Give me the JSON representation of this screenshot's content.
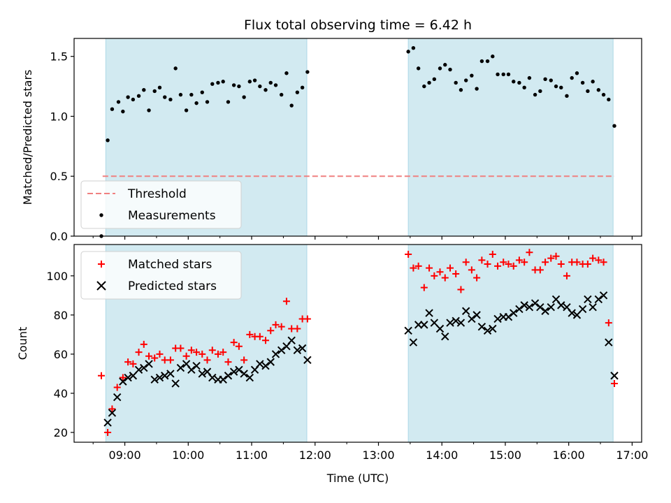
{
  "title": "Flux total observing time = 6.42 h",
  "colors": {
    "observing_band": "#add8e6",
    "threshold": "#f08080",
    "measurements": "#000000",
    "matched": "#ff0000",
    "predicted": "#000000"
  },
  "chart_data": [
    {
      "type": "scatter",
      "panel": "top",
      "title": "Flux total observing time = 6.42 h",
      "ylabel": "Matched/Predicted stars",
      "xlabel": "",
      "x_unit": "hours UTC",
      "xlim": [
        8.2,
        17.15
      ],
      "ylim": [
        0,
        1.65
      ],
      "yticks": [
        0.0,
        0.5,
        1.0,
        1.5
      ],
      "ytick_labels": [
        "0.0",
        "0.5",
        "1.0",
        "1.5"
      ],
      "xticks": [
        9,
        10,
        11,
        12,
        13,
        14,
        15,
        16,
        17
      ],
      "grid": false,
      "legend_position": "lower-left",
      "legend": [
        "Threshold",
        "Measurements"
      ],
      "observing_windows": [
        [
          8.7,
          11.87
        ],
        [
          13.47,
          16.7
        ]
      ],
      "threshold": {
        "name": "Threshold",
        "y": 0.5,
        "x_range": [
          8.65,
          16.72
        ],
        "style": "dashed"
      },
      "series": [
        {
          "name": "Measurements",
          "marker": "dot",
          "points": [
            [
              8.63,
              0.0
            ],
            [
              8.73,
              0.8
            ],
            [
              8.8,
              1.06
            ],
            [
              8.9,
              1.12
            ],
            [
              8.97,
              1.04
            ],
            [
              9.05,
              1.16
            ],
            [
              9.13,
              1.14
            ],
            [
              9.22,
              1.17
            ],
            [
              9.3,
              1.22
            ],
            [
              9.38,
              1.05
            ],
            [
              9.47,
              1.21
            ],
            [
              9.55,
              1.24
            ],
            [
              9.63,
              1.16
            ],
            [
              9.72,
              1.14
            ],
            [
              9.8,
              1.4
            ],
            [
              9.88,
              1.18
            ],
            [
              9.97,
              1.05
            ],
            [
              10.05,
              1.18
            ],
            [
              10.13,
              1.11
            ],
            [
              10.22,
              1.2
            ],
            [
              10.3,
              1.12
            ],
            [
              10.38,
              1.27
            ],
            [
              10.47,
              1.28
            ],
            [
              10.55,
              1.29
            ],
            [
              10.63,
              1.12
            ],
            [
              10.72,
              1.26
            ],
            [
              10.8,
              1.25
            ],
            [
              10.88,
              1.16
            ],
            [
              10.97,
              1.29
            ],
            [
              11.05,
              1.3
            ],
            [
              11.13,
              1.25
            ],
            [
              11.22,
              1.22
            ],
            [
              11.3,
              1.28
            ],
            [
              11.38,
              1.26
            ],
            [
              11.47,
              1.18
            ],
            [
              11.55,
              1.36
            ],
            [
              11.63,
              1.09
            ],
            [
              11.72,
              1.2
            ],
            [
              11.8,
              1.24
            ],
            [
              11.88,
              1.37
            ],
            [
              13.47,
              1.54
            ],
            [
              13.55,
              1.57
            ],
            [
              13.63,
              1.4
            ],
            [
              13.72,
              1.25
            ],
            [
              13.8,
              1.28
            ],
            [
              13.88,
              1.31
            ],
            [
              13.97,
              1.4
            ],
            [
              14.05,
              1.43
            ],
            [
              14.13,
              1.39
            ],
            [
              14.22,
              1.28
            ],
            [
              14.3,
              1.22
            ],
            [
              14.38,
              1.3
            ],
            [
              14.47,
              1.34
            ],
            [
              14.55,
              1.23
            ],
            [
              14.63,
              1.46
            ],
            [
              14.72,
              1.46
            ],
            [
              14.8,
              1.5
            ],
            [
              14.88,
              1.35
            ],
            [
              14.97,
              1.35
            ],
            [
              15.05,
              1.35
            ],
            [
              15.13,
              1.29
            ],
            [
              15.22,
              1.28
            ],
            [
              15.3,
              1.24
            ],
            [
              15.38,
              1.32
            ],
            [
              15.47,
              1.18
            ],
            [
              15.55,
              1.21
            ],
            [
              15.63,
              1.31
            ],
            [
              15.72,
              1.3
            ],
            [
              15.8,
              1.25
            ],
            [
              15.88,
              1.24
            ],
            [
              15.97,
              1.17
            ],
            [
              16.05,
              1.32
            ],
            [
              16.13,
              1.36
            ],
            [
              16.22,
              1.28
            ],
            [
              16.3,
              1.21
            ],
            [
              16.38,
              1.29
            ],
            [
              16.47,
              1.22
            ],
            [
              16.55,
              1.18
            ],
            [
              16.63,
              1.14
            ],
            [
              16.72,
              0.92
            ]
          ]
        }
      ]
    },
    {
      "type": "scatter",
      "panel": "bottom",
      "title": "",
      "ylabel": "Count",
      "xlabel": "Time (UTC)",
      "x_unit": "hours UTC",
      "xlim": [
        8.2,
        17.15
      ],
      "ylim": [
        15,
        116
      ],
      "yticks": [
        20,
        40,
        60,
        80,
        100
      ],
      "ytick_labels": [
        "20",
        "40",
        "60",
        "80",
        "100"
      ],
      "xticks": [
        9,
        10,
        11,
        12,
        13,
        14,
        15,
        16,
        17
      ],
      "xtick_labels": [
        "09:00",
        "10:00",
        "11:00",
        "12:00",
        "13:00",
        "14:00",
        "15:00",
        "16:00",
        "17:00"
      ],
      "grid": false,
      "legend_position": "top-left",
      "legend": [
        "Matched stars",
        "Predicted stars"
      ],
      "observing_windows": [
        [
          8.7,
          11.87
        ],
        [
          13.47,
          16.7
        ]
      ],
      "series": [
        {
          "name": "Matched stars",
          "marker": "plus",
          "points": [
            [
              8.63,
              49
            ],
            [
              8.73,
              20
            ],
            [
              8.8,
              32
            ],
            [
              8.88,
              43
            ],
            [
              8.97,
              48
            ],
            [
              9.05,
              56
            ],
            [
              9.13,
              55
            ],
            [
              9.22,
              61
            ],
            [
              9.3,
              65
            ],
            [
              9.38,
              59
            ],
            [
              9.47,
              58
            ],
            [
              9.55,
              60
            ],
            [
              9.63,
              57
            ],
            [
              9.72,
              57
            ],
            [
              9.8,
              63
            ],
            [
              9.88,
              63
            ],
            [
              9.97,
              59
            ],
            [
              10.05,
              62
            ],
            [
              10.13,
              61
            ],
            [
              10.22,
              60
            ],
            [
              10.3,
              57
            ],
            [
              10.38,
              62
            ],
            [
              10.47,
              60
            ],
            [
              10.55,
              61
            ],
            [
              10.63,
              56
            ],
            [
              10.72,
              66
            ],
            [
              10.8,
              64
            ],
            [
              10.88,
              57
            ],
            [
              10.97,
              70
            ],
            [
              11.05,
              69
            ],
            [
              11.13,
              69
            ],
            [
              11.22,
              67
            ],
            [
              11.3,
              72
            ],
            [
              11.38,
              75
            ],
            [
              11.47,
              74
            ],
            [
              11.55,
              87
            ],
            [
              11.63,
              73
            ],
            [
              11.72,
              73
            ],
            [
              11.8,
              78
            ],
            [
              11.88,
              78
            ],
            [
              13.47,
              111
            ],
            [
              13.55,
              104
            ],
            [
              13.63,
              105
            ],
            [
              13.72,
              94
            ],
            [
              13.8,
              104
            ],
            [
              13.88,
              100
            ],
            [
              13.97,
              102
            ],
            [
              14.05,
              99
            ],
            [
              14.13,
              104
            ],
            [
              14.22,
              101
            ],
            [
              14.3,
              93
            ],
            [
              14.38,
              107
            ],
            [
              14.47,
              103
            ],
            [
              14.55,
              99
            ],
            [
              14.63,
              108
            ],
            [
              14.72,
              106
            ],
            [
              14.8,
              111
            ],
            [
              14.88,
              105
            ],
            [
              14.97,
              107
            ],
            [
              15.05,
              106
            ],
            [
              15.13,
              105
            ],
            [
              15.22,
              108
            ],
            [
              15.3,
              107
            ],
            [
              15.38,
              112
            ],
            [
              15.47,
              103
            ],
            [
              15.55,
              103
            ],
            [
              15.63,
              107
            ],
            [
              15.72,
              109
            ],
            [
              15.8,
              110
            ],
            [
              15.88,
              106
            ],
            [
              15.97,
              100
            ],
            [
              16.05,
              107
            ],
            [
              16.13,
              107
            ],
            [
              16.22,
              106
            ],
            [
              16.3,
              106
            ],
            [
              16.38,
              109
            ],
            [
              16.47,
              108
            ],
            [
              16.55,
              107
            ],
            [
              16.63,
              76
            ],
            [
              16.72,
              45
            ]
          ]
        },
        {
          "name": "Predicted stars",
          "marker": "cross",
          "points": [
            [
              8.73,
              25
            ],
            [
              8.8,
              30
            ],
            [
              8.88,
              38
            ],
            [
              8.97,
              46
            ],
            [
              9.05,
              48
            ],
            [
              9.13,
              49
            ],
            [
              9.22,
              52
            ],
            [
              9.3,
              53
            ],
            [
              9.38,
              55
            ],
            [
              9.47,
              47
            ],
            [
              9.55,
              48
            ],
            [
              9.63,
              49
            ],
            [
              9.72,
              50
            ],
            [
              9.8,
              45
            ],
            [
              9.88,
              53
            ],
            [
              9.97,
              55
            ],
            [
              10.05,
              52
            ],
            [
              10.13,
              54
            ],
            [
              10.22,
              50
            ],
            [
              10.3,
              51
            ],
            [
              10.38,
              48
            ],
            [
              10.47,
              47
            ],
            [
              10.55,
              47
            ],
            [
              10.63,
              49
            ],
            [
              10.72,
              51
            ],
            [
              10.8,
              52
            ],
            [
              10.88,
              50
            ],
            [
              10.97,
              48
            ],
            [
              11.05,
              52
            ],
            [
              11.13,
              55
            ],
            [
              11.22,
              54
            ],
            [
              11.3,
              56
            ],
            [
              11.38,
              60
            ],
            [
              11.47,
              62
            ],
            [
              11.55,
              64
            ],
            [
              11.63,
              67
            ],
            [
              11.72,
              62
            ],
            [
              11.8,
              63
            ],
            [
              11.88,
              57
            ],
            [
              13.47,
              72
            ],
            [
              13.55,
              66
            ],
            [
              13.63,
              75
            ],
            [
              13.72,
              75
            ],
            [
              13.8,
              81
            ],
            [
              13.88,
              76
            ],
            [
              13.97,
              73
            ],
            [
              14.05,
              69
            ],
            [
              14.13,
              76
            ],
            [
              14.22,
              77
            ],
            [
              14.3,
              76
            ],
            [
              14.38,
              82
            ],
            [
              14.47,
              78
            ],
            [
              14.55,
              80
            ],
            [
              14.63,
              74
            ],
            [
              14.72,
              72
            ],
            [
              14.8,
              73
            ],
            [
              14.88,
              78
            ],
            [
              14.97,
              79
            ],
            [
              15.05,
              79
            ],
            [
              15.13,
              81
            ],
            [
              15.22,
              83
            ],
            [
              15.3,
              85
            ],
            [
              15.38,
              84
            ],
            [
              15.47,
              86
            ],
            [
              15.55,
              84
            ],
            [
              15.63,
              82
            ],
            [
              15.72,
              84
            ],
            [
              15.8,
              88
            ],
            [
              15.88,
              85
            ],
            [
              15.97,
              84
            ],
            [
              16.05,
              81
            ],
            [
              16.13,
              80
            ],
            [
              16.22,
              83
            ],
            [
              16.3,
              88
            ],
            [
              16.38,
              84
            ],
            [
              16.47,
              88
            ],
            [
              16.55,
              90
            ],
            [
              16.63,
              66
            ],
            [
              16.72,
              49
            ]
          ]
        }
      ]
    }
  ]
}
